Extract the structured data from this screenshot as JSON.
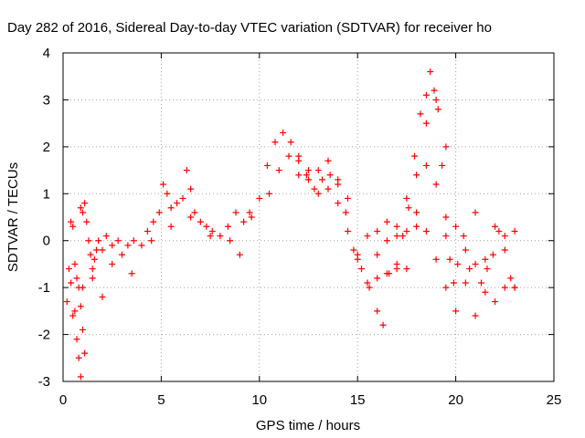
{
  "chart_data": {
    "type": "scatter",
    "title": "Day 282 of 2016, Sidereal Day-to-day VTEC variation (SDTVAR) for receiver ho",
    "xlabel": "GPS time / hours",
    "ylabel": "SDTVAR / TECUs",
    "xlim": [
      0,
      25
    ],
    "ylim": [
      -3,
      4
    ],
    "xticks": [
      "0",
      "5",
      "10",
      "15",
      "20",
      "25"
    ],
    "yticks": [
      "-3",
      "-2",
      "-1",
      "0",
      "1",
      "2",
      "3",
      "4"
    ],
    "grid": true,
    "marker": "plus",
    "color": "#ff0000",
    "series": [
      {
        "points": [
          [
            0.2,
            -1.3
          ],
          [
            0.3,
            -0.6
          ],
          [
            0.4,
            -0.9
          ],
          [
            0.5,
            -1.6
          ],
          [
            0.6,
            -1.5
          ],
          [
            0.7,
            -2.1
          ],
          [
            0.8,
            -2.5
          ],
          [
            0.9,
            -2.9
          ],
          [
            0.4,
            0.4
          ],
          [
            0.5,
            0.3
          ],
          [
            0.6,
            -0.5
          ],
          [
            0.7,
            -0.8
          ],
          [
            0.8,
            -1.0
          ],
          [
            0.9,
            -1.4
          ],
          [
            1.0,
            -1.9
          ],
          [
            1.1,
            -2.4
          ],
          [
            0.9,
            0.7
          ],
          [
            1.0,
            0.6
          ],
          [
            1.1,
            0.8
          ],
          [
            1.2,
            0.4
          ],
          [
            1.3,
            0.0
          ],
          [
            1.4,
            -0.3
          ],
          [
            1.5,
            -0.6
          ],
          [
            1.6,
            -0.4
          ],
          [
            1.7,
            -0.2
          ],
          [
            1.8,
            0.0
          ],
          [
            2.0,
            -0.2
          ],
          [
            2.2,
            0.1
          ],
          [
            2.5,
            -0.1
          ],
          [
            2.8,
            0.0
          ],
          [
            3.0,
            -0.3
          ],
          [
            3.3,
            -0.1
          ],
          [
            3.6,
            0.0
          ],
          [
            4.0,
            -0.1
          ],
          [
            4.3,
            0.2
          ],
          [
            4.6,
            0.4
          ],
          [
            4.9,
            0.6
          ],
          [
            5.1,
            1.2
          ],
          [
            5.3,
            1.0
          ],
          [
            5.5,
            0.7
          ],
          [
            5.8,
            0.8
          ],
          [
            6.1,
            0.9
          ],
          [
            6.3,
            1.5
          ],
          [
            6.5,
            1.1
          ],
          [
            6.7,
            0.6
          ],
          [
            7.0,
            0.4
          ],
          [
            7.3,
            0.3
          ],
          [
            7.6,
            0.2
          ],
          [
            8.0,
            0.1
          ],
          [
            8.4,
            0.3
          ],
          [
            8.8,
            0.6
          ],
          [
            9.2,
            0.4
          ],
          [
            9.6,
            0.5
          ],
          [
            10.0,
            0.9
          ],
          [
            10.4,
            1.6
          ],
          [
            10.8,
            2.1
          ],
          [
            11.2,
            2.3
          ],
          [
            11.6,
            2.1
          ],
          [
            12.0,
            1.8
          ],
          [
            12.4,
            1.4
          ],
          [
            12.8,
            1.1
          ],
          [
            13.2,
            1.3
          ],
          [
            13.6,
            1.4
          ],
          [
            14.0,
            1.2
          ],
          [
            14.4,
            0.6
          ],
          [
            14.8,
            -0.2
          ],
          [
            15.2,
            -0.6
          ],
          [
            15.6,
            -1.0
          ],
          [
            16.0,
            -1.5
          ],
          [
            16.3,
            -1.8
          ],
          [
            16.6,
            -0.7
          ],
          [
            17.0,
            -0.6
          ],
          [
            17.3,
            0.1
          ],
          [
            17.6,
            0.7
          ],
          [
            17.9,
            1.8
          ],
          [
            18.2,
            2.7
          ],
          [
            18.5,
            3.1
          ],
          [
            18.7,
            3.6
          ],
          [
            18.9,
            3.2
          ],
          [
            19.1,
            2.8
          ],
          [
            19.3,
            1.6
          ],
          [
            19.5,
            0.5
          ],
          [
            19.7,
            -0.4
          ],
          [
            19.9,
            -0.9
          ],
          [
            20.1,
            -0.5
          ],
          [
            20.4,
            0.1
          ],
          [
            20.7,
            -0.6
          ],
          [
            21.0,
            -1.6
          ],
          [
            21.3,
            -0.9
          ],
          [
            21.6,
            -0.6
          ],
          [
            21.9,
            -0.3
          ],
          [
            22.2,
            0.2
          ],
          [
            22.5,
            -0.2
          ],
          [
            22.8,
            -0.8
          ],
          [
            23.0,
            -1.0
          ],
          [
            1.0,
            -1.0
          ],
          [
            1.5,
            -0.8
          ],
          [
            2.0,
            -1.2
          ],
          [
            2.5,
            -0.5
          ],
          [
            3.5,
            -0.7
          ],
          [
            4.5,
            0.0
          ],
          [
            5.5,
            0.3
          ],
          [
            6.5,
            0.5
          ],
          [
            7.5,
            0.1
          ],
          [
            8.5,
            0.0
          ],
          [
            9.0,
            -0.3
          ],
          [
            9.5,
            0.6
          ],
          [
            10.5,
            1.0
          ],
          [
            11.0,
            1.5
          ],
          [
            11.5,
            1.8
          ],
          [
            12.0,
            1.4
          ],
          [
            12.5,
            1.3
          ],
          [
            13.0,
            1.0
          ],
          [
            13.5,
            1.1
          ],
          [
            14.0,
            0.8
          ],
          [
            14.5,
            0.2
          ],
          [
            15.0,
            -0.4
          ],
          [
            15.5,
            -0.9
          ],
          [
            16.0,
            -0.8
          ],
          [
            16.5,
            -0.7
          ],
          [
            17.0,
            -0.5
          ],
          [
            17.5,
            -0.6
          ],
          [
            18.0,
            0.3
          ],
          [
            18.5,
            0.2
          ],
          [
            19.0,
            -0.4
          ],
          [
            19.5,
            -1.0
          ],
          [
            20.0,
            -1.5
          ],
          [
            20.5,
            -0.9
          ],
          [
            21.0,
            -0.5
          ],
          [
            21.5,
            -1.1
          ],
          [
            22.0,
            -1.3
          ],
          [
            22.5,
            -1.0
          ],
          [
            23.0,
            -1.0
          ],
          [
            16.0,
            -0.3
          ],
          [
            16.5,
            0.0
          ],
          [
            17.0,
            0.1
          ],
          [
            17.5,
            0.2
          ],
          [
            18.0,
            0.6
          ],
          [
            18.5,
            2.5
          ],
          [
            19.0,
            3.0
          ],
          [
            19.5,
            2.0
          ],
          [
            20.0,
            0.3
          ],
          [
            20.5,
            -0.2
          ],
          [
            21.0,
            0.6
          ],
          [
            21.5,
            -0.4
          ],
          [
            22.0,
            0.3
          ],
          [
            22.5,
            0.1
          ],
          [
            23.0,
            0.2
          ],
          [
            12.0,
            1.7
          ],
          [
            12.5,
            1.5
          ],
          [
            13.0,
            1.5
          ],
          [
            13.5,
            1.7
          ],
          [
            14.0,
            1.3
          ],
          [
            14.5,
            0.9
          ],
          [
            15.0,
            -0.3
          ],
          [
            15.5,
            0.1
          ],
          [
            16.0,
            0.2
          ],
          [
            16.5,
            0.4
          ],
          [
            17.0,
            0.3
          ],
          [
            17.5,
            0.9
          ],
          [
            18.0,
            1.4
          ],
          [
            18.5,
            1.6
          ],
          [
            19.0,
            1.2
          ],
          [
            19.5,
            0.1
          ]
        ]
      }
    ]
  }
}
